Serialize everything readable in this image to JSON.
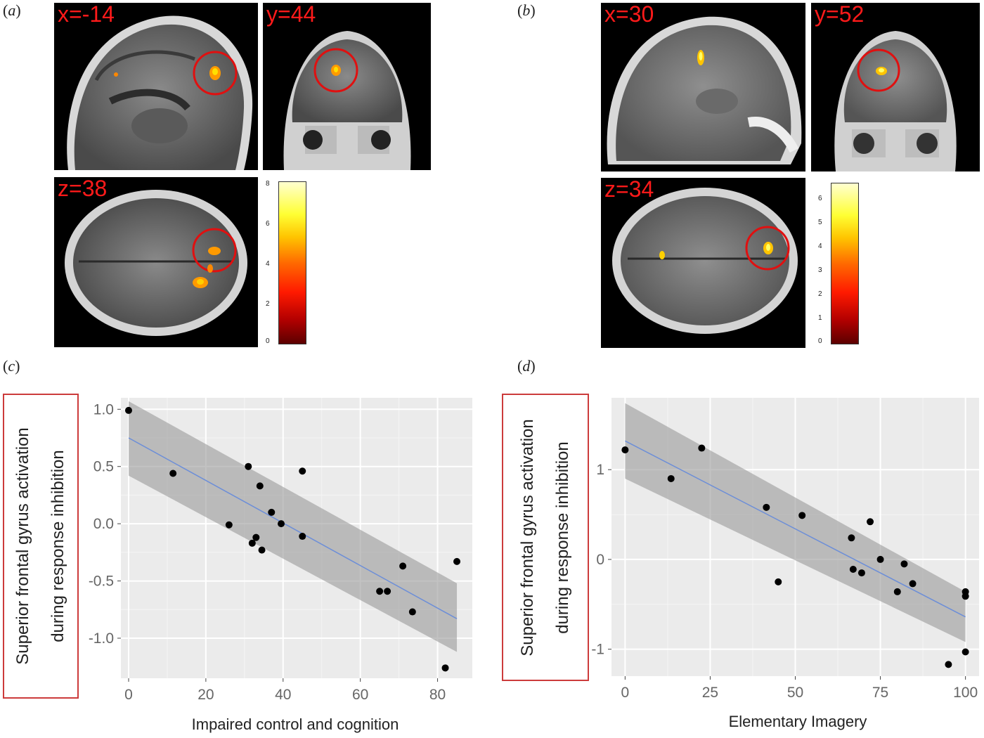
{
  "panels": {
    "a": {
      "label": "a",
      "coords": [
        "x=-14",
        "y=44",
        "z=38"
      ],
      "colorbar_ticks": [
        "0",
        "2",
        "4",
        "6",
        "8"
      ]
    },
    "b": {
      "label": "b",
      "coords": [
        "x=30",
        "y=52",
        "z=34"
      ],
      "colorbar_ticks": [
        "0",
        "1",
        "2",
        "3",
        "4",
        "5",
        "6"
      ]
    },
    "c": {
      "label": "c",
      "ylabel_line1": "Superior frontal gyrus activation",
      "ylabel_line2": "during response inhibition",
      "xlabel": "Impaired control and cognition"
    },
    "d": {
      "label": "d",
      "ylabel_line1": "Superior frontal gyrus activation",
      "ylabel_line2": "during response inhibition",
      "xlabel": "Elementary Imagery"
    }
  },
  "chart_data": [
    {
      "type": "scatter",
      "panel": "c",
      "xlabel": "Impaired control and cognition",
      "ylabel": "Superior frontal gyrus activation during response inhibition",
      "xlim": [
        -2,
        89
      ],
      "ylim": [
        -1.35,
        1.1
      ],
      "xticks": [
        0,
        20,
        40,
        60,
        80
      ],
      "yticks": [
        -1.0,
        -0.5,
        0.0,
        0.5,
        1.0
      ],
      "ytick_labels": [
        "-1.0",
        "-0.5",
        "0.0",
        "0.5",
        "1.0"
      ],
      "grid": true,
      "points": [
        [
          0,
          0.99
        ],
        [
          11.5,
          0.44
        ],
        [
          26,
          -0.01
        ],
        [
          31,
          0.5
        ],
        [
          32,
          -0.17
        ],
        [
          33,
          -0.12
        ],
        [
          34,
          0.33
        ],
        [
          34.5,
          -0.23
        ],
        [
          37,
          0.1
        ],
        [
          39.5,
          0.0
        ],
        [
          45,
          0.46
        ],
        [
          45,
          -0.11
        ],
        [
          65,
          -0.59
        ],
        [
          67,
          -0.59
        ],
        [
          71,
          -0.37
        ],
        [
          73.5,
          -0.77
        ],
        [
          82,
          -1.26
        ],
        [
          85,
          -0.33
        ]
      ],
      "fit": {
        "x": [
          0,
          85
        ],
        "y": [
          0.75,
          -0.83
        ]
      },
      "ci_band": {
        "x": [
          0,
          85
        ],
        "upper": [
          1.07,
          -0.52
        ],
        "lower": [
          0.42,
          -1.12
        ]
      }
    },
    {
      "type": "scatter",
      "panel": "d",
      "xlabel": "Elementary Imagery",
      "ylabel": "Superior frontal gyrus activation during response inhibition",
      "xlim": [
        -4,
        104
      ],
      "ylim": [
        -1.3,
        1.8
      ],
      "xticks": [
        0,
        25,
        50,
        75,
        100
      ],
      "yticks": [
        -1,
        0,
        1
      ],
      "ytick_labels": [
        "-1",
        "0",
        "1"
      ],
      "grid": true,
      "points": [
        [
          0,
          1.22
        ],
        [
          13.5,
          0.9
        ],
        [
          22.5,
          1.24
        ],
        [
          41.5,
          0.58
        ],
        [
          45,
          -0.25
        ],
        [
          52,
          0.49
        ],
        [
          66.5,
          0.24
        ],
        [
          67,
          -0.11
        ],
        [
          69.5,
          -0.15
        ],
        [
          72,
          0.42
        ],
        [
          75,
          0.0
        ],
        [
          80,
          -0.36
        ],
        [
          82,
          -0.05
        ],
        [
          84.5,
          -0.27
        ],
        [
          95,
          -1.17
        ],
        [
          100,
          -0.36
        ],
        [
          100,
          -0.41
        ],
        [
          100,
          -1.03
        ]
      ],
      "fit": {
        "x": [
          0,
          100
        ],
        "y": [
          1.32,
          -0.64
        ]
      },
      "ci_band": {
        "x": [
          0,
          100
        ],
        "upper": [
          1.74,
          -0.36
        ],
        "lower": [
          0.9,
          -0.92
        ]
      }
    }
  ]
}
